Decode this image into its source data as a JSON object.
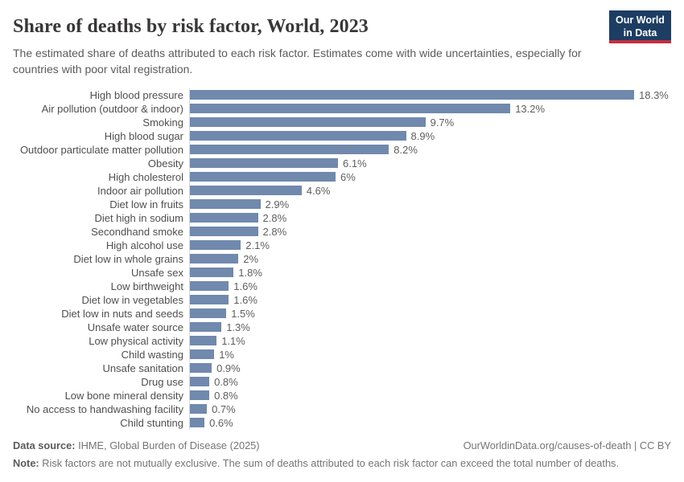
{
  "header": {
    "title": "Share of deaths by risk factor, World, 2023",
    "subtitle": "The estimated share of deaths attributed to each risk factor. Estimates come with wide uncertainties, especially for countries with poor vital registration.",
    "logo": {
      "line1": "Our World",
      "line2": "in Data"
    }
  },
  "chart_data": {
    "type": "bar",
    "orientation": "horizontal",
    "title": "Share of deaths by risk factor, World, 2023",
    "xlabel": "",
    "ylabel": "",
    "xlim": [
      0,
      18.3
    ],
    "grid": false,
    "legend": "none",
    "bar_color": "#7089ad",
    "categories": [
      "High blood pressure",
      "Air pollution (outdoor & indoor)",
      "Smoking",
      "High blood sugar",
      "Outdoor particulate matter pollution",
      "Obesity",
      "High cholesterol",
      "Indoor air pollution",
      "Diet low in fruits",
      "Diet high in sodium",
      "Secondhand smoke",
      "High alcohol use",
      "Diet low in whole grains",
      "Unsafe sex",
      "Low birthweight",
      "Diet low in vegetables",
      "Diet low in nuts and seeds",
      "Unsafe water source",
      "Low physical activity",
      "Child wasting",
      "Unsafe sanitation",
      "Drug use",
      "Low bone mineral density",
      "No access to handwashing facility",
      "Child stunting"
    ],
    "values": [
      18.3,
      13.2,
      9.7,
      8.9,
      8.2,
      6.1,
      6,
      4.6,
      2.9,
      2.8,
      2.8,
      2.1,
      2,
      1.8,
      1.6,
      1.6,
      1.5,
      1.3,
      1.1,
      1,
      0.9,
      0.8,
      0.8,
      0.7,
      0.6
    ],
    "value_labels": [
      "18.3%",
      "13.2%",
      "9.7%",
      "8.9%",
      "8.2%",
      "6.1%",
      "6%",
      "4.6%",
      "2.9%",
      "2.8%",
      "2.8%",
      "2.1%",
      "2%",
      "1.8%",
      "1.6%",
      "1.6%",
      "1.5%",
      "1.3%",
      "1.1%",
      "1%",
      "0.9%",
      "0.8%",
      "0.8%",
      "0.7%",
      "0.6%"
    ]
  },
  "footer": {
    "datasource_label": "Data source:",
    "datasource_value": " IHME, Global Burden of Disease (2025)",
    "link": "OurWorldinData.org/causes-of-death | CC BY",
    "note_label": "Note:",
    "note_value": " Risk factors are not mutually exclusive. The sum of deaths attributed to each risk factor can exceed the total number of deaths."
  },
  "colors": {
    "bar": "#7089ad",
    "title_text": "#383636",
    "subtitle_text": "#5b5b5b",
    "label_text": "#4f4f4f",
    "value_text": "#5e5e5e",
    "axis_line": "#d9d9d9",
    "logo_background": "#1d3d63",
    "logo_accent": "#c5303e",
    "footer_text": "#757575"
  }
}
